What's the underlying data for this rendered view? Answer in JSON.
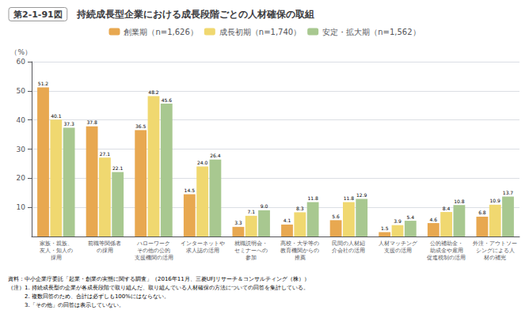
{
  "chart_data": {
    "type": "bar",
    "title": "持続成長型企業における成長段階ごとの人材確保の取組",
    "subtitle": "第2-1-91図",
    "ylabel": "（%）",
    "categories": [
      "家族・親族、\n友人・知人の\n採用",
      "前職等関係者\nの採用",
      "ハローワーク\nその他の公的\n支援機関の活用",
      "インターネットや\n求人誌の活用",
      "就職説明会・\nセミナーへの\n参加",
      "高校・大学等の\n教育機関からの\n推薦",
      "民間の人材紹\n介会社の活用",
      "人材マッチング\n支援の活用",
      "公的補助金・\n助成金や雇用\n促進税制の活用",
      "外注・アウトソー\nシングによる人\n材の補完"
    ],
    "series": [
      {
        "name": "創業期（n=1,626）",
        "color": "#E8A850",
        "values": [
          51.2,
          37.8,
          36.5,
          14.5,
          3.3,
          4.1,
          5.6,
          1.5,
          4.6,
          6.8
        ],
        "value_labels": [
          "51.2",
          "37.8",
          "36.5",
          "14.5",
          "3.3",
          "4.1",
          "5.6",
          "1.5",
          "4.6",
          "6.8"
        ]
      },
      {
        "name": "成長初期（n=1,740）",
        "color": "#F0D870",
        "values": [
          40.1,
          27.1,
          48.2,
          24.0,
          7.1,
          8.3,
          11.8,
          3.9,
          8.4,
          10.9
        ],
        "value_labels": [
          "40.1",
          "27.1",
          "48.2",
          "24.0",
          "7.1",
          "8.3",
          "11.8",
          "3.9",
          "8.4",
          "10.9"
        ]
      },
      {
        "name": "安定・拡大期（n=1,562）",
        "color": "#A8C890",
        "values": [
          37.3,
          22.1,
          45.6,
          26.4,
          9.0,
          11.8,
          12.9,
          5.4,
          10.8,
          13.7
        ],
        "value_labels": [
          "37.3",
          "22.1",
          "45.6",
          "26.4",
          "9.0",
          "11.8",
          "12.9",
          "5.4",
          "10.8",
          "13.7"
        ]
      }
    ],
    "ylim": [
      0,
      60
    ],
    "yticks": [
      10,
      20,
      30,
      40,
      50,
      60
    ],
    "grid": true,
    "legend": "top",
    "data_labels": true,
    "annotations": [
      "資料：中小企業庁委託「起業・創業の実態に関する調査」（2016年11月、三菱UFJリサーチ＆コンサルティング（株））",
      "（注）1. 持続成長型の企業が各成長段階で取り組んだ、取り組んでいる人材確保の方法についての回答を集計している。",
      "　　　2. 複数回答のため、合計は必ずしも100%にはならない。",
      "　　　3.「その他」の回答は表示していない。"
    ]
  }
}
